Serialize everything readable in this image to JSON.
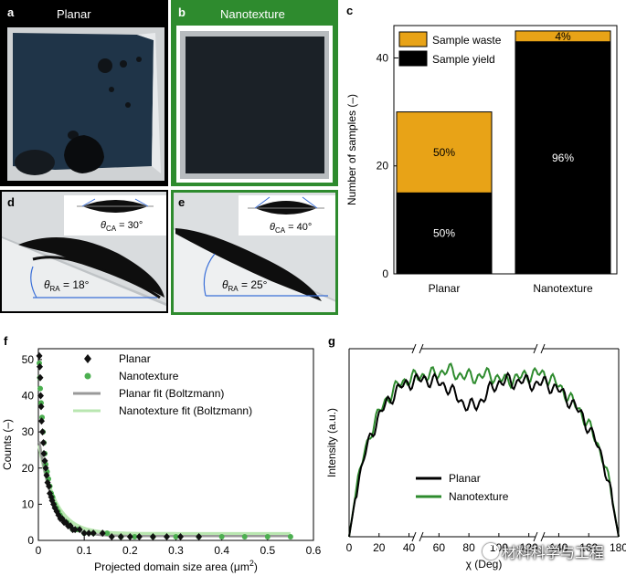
{
  "panel_a": {
    "letter": "a",
    "title": "Planar"
  },
  "panel_b": {
    "letter": "b",
    "title": "Nanotexture"
  },
  "panel_d": {
    "letter": "d",
    "theta_ca": "θCA = 30°",
    "theta_ra": "θRA = 18°",
    "ca_sym": "θ",
    "ca_sub": "CA",
    "ca_val": " = 30°",
    "ra_sym": "θ",
    "ra_sub": "RA",
    "ra_val": " = 18°"
  },
  "panel_e": {
    "letter": "e",
    "ca_sym": "θ",
    "ca_sub": "CA",
    "ca_val": " = 40°",
    "ra_sym": "θ",
    "ra_sub": "RA",
    "ra_val": " = 25°"
  },
  "panel_c": {
    "letter": "c"
  },
  "panel_f": {
    "letter": "f"
  },
  "panel_g": {
    "letter": "g"
  },
  "watermark": "材料科学与工程",
  "colors": {
    "green": "#2e8b2e",
    "gold": "#e8a317",
    "planar_marker": "#111111",
    "nano_marker": "#4caf50",
    "planar_fit": "#999999",
    "nano_fit": "#b9e6b0"
  },
  "chart_data": [
    {
      "type": "bar",
      "panel": "c",
      "categories": [
        "Planar",
        "Nanotexture"
      ],
      "series": [
        {
          "name": "Sample yield",
          "values": [
            15,
            43
          ],
          "labels": [
            "50%",
            "96%"
          ],
          "color": "#000000"
        },
        {
          "name": "Sample waste",
          "values": [
            15,
            2
          ],
          "labels": [
            "50%",
            "4%"
          ],
          "color": "#e8a317"
        }
      ],
      "stacked": true,
      "ylabel": "Number of samples (–)",
      "ylim": [
        0,
        46
      ],
      "yticks": [
        "0",
        "20",
        "40"
      ],
      "legend": "top-left"
    },
    {
      "type": "scatter",
      "panel": "f",
      "xlabel": "Projected domain size area (μm²)",
      "xlabel_main": "Projected domain size area (μm",
      "xlabel_sup": "2",
      "xlabel_end": ")",
      "ylabel": "Counts (–)",
      "xlim": [
        0,
        0.6
      ],
      "ylim": [
        0,
        53
      ],
      "xticks": [
        "0",
        "0.1",
        "0.2",
        "0.3",
        "0.4",
        "0.5",
        "0.6"
      ],
      "yticks": [
        "0",
        "10",
        "20",
        "30",
        "40",
        "50"
      ],
      "legend": "top-center",
      "series": [
        {
          "name": "Planar",
          "kind": "marker-diamond",
          "color": "#111111",
          "points": [
            [
              0.002,
              51
            ],
            [
              0.003,
              48
            ],
            [
              0.004,
              45
            ],
            [
              0.005,
              40
            ],
            [
              0.006,
              37
            ],
            [
              0.007,
              33
            ],
            [
              0.009,
              30
            ],
            [
              0.011,
              27
            ],
            [
              0.012,
              24
            ],
            [
              0.014,
              22
            ],
            [
              0.016,
              20
            ],
            [
              0.018,
              18
            ],
            [
              0.02,
              16
            ],
            [
              0.023,
              15
            ],
            [
              0.025,
              13
            ],
            [
              0.028,
              12
            ],
            [
              0.03,
              11
            ],
            [
              0.033,
              10
            ],
            [
              0.036,
              9
            ],
            [
              0.04,
              8
            ],
            [
              0.044,
              7
            ],
            [
              0.048,
              6
            ],
            [
              0.052,
              6
            ],
            [
              0.056,
              5
            ],
            [
              0.06,
              5
            ],
            [
              0.065,
              4
            ],
            [
              0.07,
              4
            ],
            [
              0.075,
              3
            ],
            [
              0.08,
              3
            ],
            [
              0.09,
              3
            ],
            [
              0.1,
              2
            ],
            [
              0.11,
              2
            ],
            [
              0.12,
              2
            ],
            [
              0.14,
              2
            ],
            [
              0.16,
              1
            ],
            [
              0.18,
              1
            ],
            [
              0.2,
              1
            ],
            [
              0.22,
              1
            ],
            [
              0.25,
              1
            ],
            [
              0.28,
              1
            ],
            [
              0.31,
              1
            ],
            [
              0.35,
              1
            ]
          ]
        },
        {
          "name": "Nanotexture",
          "kind": "marker-circle",
          "color": "#4caf50",
          "points": [
            [
              0.002,
              49
            ],
            [
              0.003,
              45
            ],
            [
              0.004,
              42
            ],
            [
              0.006,
              38
            ],
            [
              0.008,
              34
            ],
            [
              0.01,
              30
            ],
            [
              0.012,
              27
            ],
            [
              0.014,
              24
            ],
            [
              0.016,
              21
            ],
            [
              0.019,
              19
            ],
            [
              0.022,
              17
            ],
            [
              0.025,
              15
            ],
            [
              0.028,
              13
            ],
            [
              0.031,
              12
            ],
            [
              0.035,
              10
            ],
            [
              0.039,
              9
            ],
            [
              0.043,
              8
            ],
            [
              0.047,
              7
            ],
            [
              0.052,
              6
            ],
            [
              0.057,
              5
            ],
            [
              0.062,
              5
            ],
            [
              0.068,
              4
            ],
            [
              0.075,
              3
            ],
            [
              0.085,
              3
            ],
            [
              0.1,
              2
            ],
            [
              0.12,
              2
            ],
            [
              0.15,
              2
            ],
            [
              0.18,
              1
            ],
            [
              0.21,
              1
            ],
            [
              0.25,
              1
            ],
            [
              0.3,
              1
            ],
            [
              0.35,
              1
            ],
            [
              0.4,
              1
            ],
            [
              0.45,
              1
            ],
            [
              0.5,
              1
            ],
            [
              0.55,
              1
            ]
          ]
        },
        {
          "name": "Planar fit (Boltzmann)",
          "kind": "line",
          "color": "#999999"
        },
        {
          "name": "Nanotexture fit (Boltzmann)",
          "kind": "line",
          "color": "#b9e6b0"
        }
      ]
    },
    {
      "type": "line",
      "panel": "g",
      "xlabel": "χ (Deg)",
      "ylabel": "Intensity (a.u.)",
      "xlim": [
        0,
        180
      ],
      "xticks": [
        "0",
        "20",
        "40",
        "60",
        "80",
        "100",
        "120",
        "140",
        "160",
        "180"
      ],
      "axis_break": true,
      "legend": "bottom-center",
      "series": [
        {
          "name": "Planar",
          "color": "#000000",
          "x": [
            0,
            5,
            10,
            15,
            20,
            25,
            30,
            35,
            40,
            45,
            50,
            55,
            60,
            65,
            70,
            75,
            80,
            85,
            90,
            95,
            100,
            105,
            110,
            115,
            120,
            125,
            130,
            135,
            140,
            145,
            150,
            155,
            160,
            165,
            170,
            175,
            180
          ],
          "y": [
            0,
            25,
            42,
            55,
            64,
            71,
            76,
            80,
            82,
            83,
            84,
            83,
            82,
            80,
            76,
            72,
            69,
            70,
            74,
            79,
            82,
            83,
            82,
            83,
            82,
            81,
            82,
            80,
            78,
            74,
            70,
            65,
            58,
            50,
            40,
            22,
            0
          ]
        },
        {
          "name": "Nanotexture",
          "color": "#2e8b2e",
          "x": [
            0,
            5,
            10,
            15,
            20,
            25,
            30,
            35,
            40,
            45,
            50,
            55,
            60,
            65,
            70,
            75,
            80,
            85,
            90,
            95,
            100,
            105,
            110,
            115,
            120,
            125,
            130,
            135,
            140,
            145,
            150,
            155,
            160,
            165,
            170,
            175,
            180
          ],
          "y": [
            0,
            26,
            44,
            57,
            66,
            73,
            78,
            82,
            84,
            85,
            86,
            86,
            87,
            89,
            87,
            86,
            85,
            85,
            86,
            86,
            84,
            83,
            84,
            85,
            86,
            87,
            86,
            84,
            80,
            76,
            71,
            66,
            59,
            51,
            41,
            23,
            0
          ]
        }
      ]
    }
  ]
}
